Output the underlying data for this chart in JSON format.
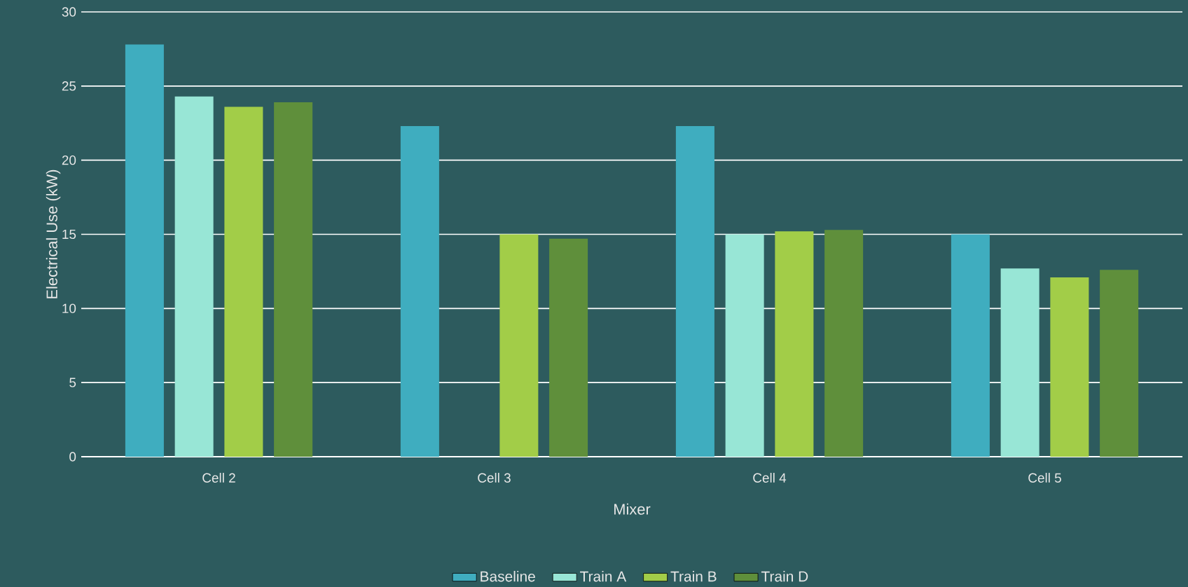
{
  "chart_data": {
    "type": "bar",
    "xlabel": "Mixer",
    "ylabel": "Electrical Use (kW)",
    "categories": [
      "Cell 2",
      "Cell 3",
      "Cell 4",
      "Cell 5"
    ],
    "series": [
      {
        "name": "Baseline",
        "color": "#3fadbf",
        "values": [
          27.8,
          22.3,
          22.3,
          15.0
        ]
      },
      {
        "name": "Train A",
        "color": "#98e6d6",
        "values": [
          24.3,
          null,
          15.0,
          12.7
        ]
      },
      {
        "name": "Train B",
        "color": "#a2cd48",
        "values": [
          23.6,
          15.0,
          15.2,
          12.1
        ]
      },
      {
        "name": "Train D",
        "color": "#5f8f3b",
        "values": [
          23.9,
          14.7,
          15.3,
          12.6
        ]
      }
    ],
    "ylim": [
      0,
      30
    ],
    "yticks": [
      0,
      5,
      10,
      15,
      20,
      25,
      30
    ],
    "grid": "y",
    "legend": "bottom"
  }
}
